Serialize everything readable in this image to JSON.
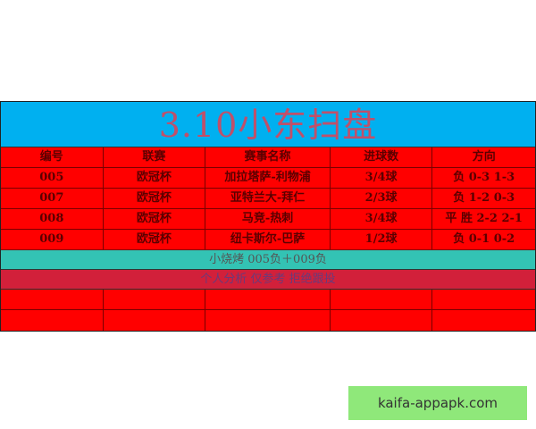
{
  "title": "3.10小东扫盘",
  "headers": [
    "编号",
    "联赛",
    "赛事名称",
    "进球数",
    "方向"
  ],
  "rows": [
    [
      "005",
      "欧冠杯",
      "加拉塔萨-利物浦",
      "3/4球",
      "负 0-3  1-3"
    ],
    [
      "007",
      "欧冠杯",
      "亚特兰大-拜仁",
      "2/3球",
      "负 1-2  0-3"
    ],
    [
      "008",
      "欧冠杯",
      "马竞-热刺",
      "3/4球",
      "平 胜 2-2 2-1"
    ],
    [
      "009",
      "欧冠杯",
      "纽卡斯尔-巴萨",
      "1/2球",
      "负 0-1 0-2"
    ]
  ],
  "combo": "小烧烤 005负＋009负",
  "disclaimer": "个人分析  仅参考  拒绝跟投",
  "watermark": "kaifa-appapk.com",
  "colors": {
    "title_bg": "#00b0f0",
    "row_bg": "#ff0000",
    "combo_bg": "#33c3b4",
    "note_bg": "#d2203a"
  }
}
